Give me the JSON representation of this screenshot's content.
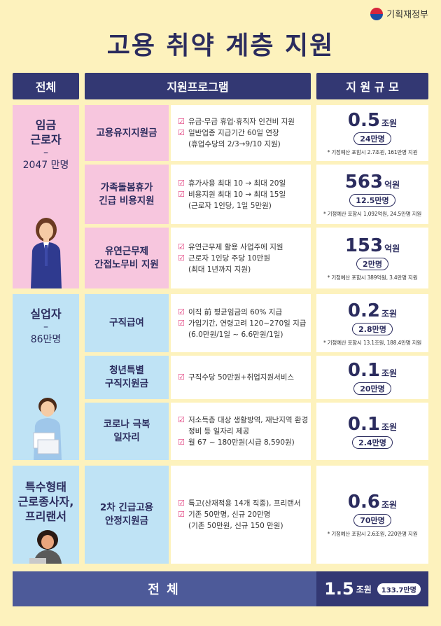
{
  "ministry": "기획재정부",
  "title": "고용 취약 계층 지원",
  "headers": {
    "all": "전체",
    "program": "지원프로그램",
    "scale": "지 원 규 모"
  },
  "groups": [
    {
      "name": "임금\n근로자",
      "dash": "–",
      "count": "2047 만명"
    },
    {
      "name": "실업자",
      "dash": "–",
      "count": "86만명"
    },
    {
      "name": "특수형태\n근로종사자,\n프리랜서",
      "dash": "",
      "count": ""
    }
  ],
  "programs": [
    {
      "name": "고용유지지원금",
      "items": [
        "유급·무급 휴업·휴직자 인건비 지원",
        "일반업종 지급기간 60일 연장"
      ],
      "extra": "(휴업수당의 2/3→9/10 지원)",
      "amount": "0.5",
      "unit": "조원",
      "people": "24만명",
      "note": "* 기정예산 포함시 2.7조원, 161만명 지원"
    },
    {
      "name": "가족돌봄휴가\n긴급 비용지원",
      "items": [
        "휴가사용 최대 10 → 최대 20일",
        "비용지원 최대 10 → 최대 15일"
      ],
      "extra": "(근로자 1인당, 1일 5만원)",
      "amount": "563",
      "unit": "억원",
      "people": "12.5만명",
      "note": "* 기정예산 포함시 1,092억원, 24.5만명 지원"
    },
    {
      "name": "유연근무제\n간접노무비 지원",
      "items": [
        "유연근무제 활용 사업주에 지원",
        "근로자 1인당 주당 10만원"
      ],
      "extra": "(최대 1년까지 지원)",
      "amount": "153",
      "unit": "억원",
      "people": "2만명",
      "note": "* 기정예산 포함시 389억원, 3.4만명 지원"
    },
    {
      "name": "구직급여",
      "items": [
        "이직 前 평균임금의 60% 지급",
        "가입기간, 연령고려 120~270일 지급"
      ],
      "extra": "(6.0만원/1일 ~ 6.6만원/1일)",
      "amount": "0.2",
      "unit": "조원",
      "people": "2.8만명",
      "note": "* 기정예산 포함시 13.1조원, 188.4만명 지원"
    },
    {
      "name": "청년특별\n구직지원금",
      "items": [
        "구직수당 50만원+취업지원서비스"
      ],
      "extra": "",
      "amount": "0.1",
      "unit": "조원",
      "people": "20만명",
      "note": ""
    },
    {
      "name": "코로나 극복\n일자리",
      "items": [
        "저소득층 대상 생활방역, 재난지역 환경정비 등 일자리 제공",
        "월 67 ~ 180만원(시급 8,590원)"
      ],
      "extra": "",
      "amount": "0.1",
      "unit": "조원",
      "people": "2.4만명",
      "note": ""
    },
    {
      "name": "2차 긴급고용\n안정지원금",
      "items": [
        "특고(산재적용 14개 직종), 프리랜서",
        "기존 50만명, 신규 20만명"
      ],
      "extra": "(기존 50만원, 신규 150 만원)",
      "amount": "0.6",
      "unit": "조원",
      "people": "70만명",
      "note": "* 기정예산 포함시 2.6조원, 220만명 지원"
    }
  ],
  "total": {
    "label": "전 체",
    "amount": "1.5",
    "unit": "조원",
    "people": "133.7만명"
  },
  "colors": {
    "navy": "#333873",
    "pink": "#f7c6de",
    "blue": "#bfe3f5",
    "background": "#fdf2bd",
    "total": "#4d5a99"
  }
}
